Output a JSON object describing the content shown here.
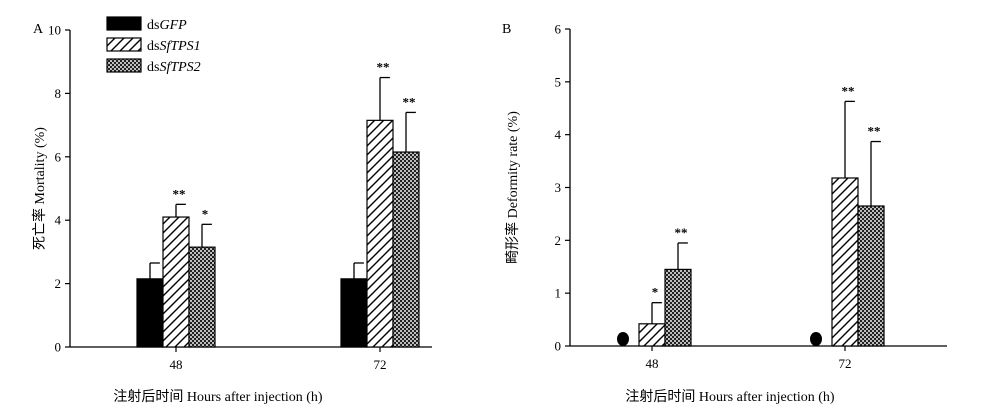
{
  "chart_data": [
    {
      "type": "bar",
      "panel": "A",
      "categories": [
        "48",
        "72"
      ],
      "xlabel": "注射后时间 Hours after injection (h)",
      "ylabel": "死亡率 Mortality (%)",
      "ylim": [
        0,
        10
      ],
      "yticks": [
        "0",
        "2",
        "4",
        "6",
        "8",
        "10"
      ],
      "legend_placement": "top-left",
      "series": [
        {
          "name_prefix": "ds",
          "name_italic": "GFP",
          "pattern": "solid",
          "color": "#000000",
          "values": [
            2.15,
            2.15
          ],
          "errors": [
            0.5,
            0.5
          ],
          "sig": [
            "",
            ""
          ]
        },
        {
          "name_prefix": "ds",
          "name_italic": "SfTPS1",
          "pattern": "diagonal",
          "color": "#000000",
          "values": [
            4.1,
            7.15
          ],
          "errors": [
            0.4,
            1.35
          ],
          "sig": [
            "**",
            "**"
          ]
        },
        {
          "name_prefix": "ds",
          "name_italic": "SfTPS2",
          "pattern": "crosshatch",
          "color": "#000000",
          "values": [
            3.15,
            6.15
          ],
          "errors": [
            0.72,
            1.25
          ],
          "sig": [
            "*",
            "**"
          ]
        }
      ]
    },
    {
      "type": "bar",
      "panel": "B",
      "categories": [
        "48",
        "72"
      ],
      "xlabel": "注射后时间 Hours after injection (h)",
      "ylabel": "畸形率 Deformity rate (%)",
      "ylim": [
        0,
        6
      ],
      "yticks": [
        "0",
        "1",
        "2",
        "3",
        "4",
        "5",
        "6"
      ],
      "series": [
        {
          "name_prefix": "ds",
          "name_italic": "GFP",
          "pattern": "solid",
          "color": "#000000",
          "values": [
            0,
            0
          ],
          "errors": [
            0,
            0
          ],
          "sig": [
            "",
            ""
          ]
        },
        {
          "name_prefix": "ds",
          "name_italic": "SfTPS1",
          "pattern": "diagonal",
          "color": "#000000",
          "values": [
            0.42,
            3.18
          ],
          "errors": [
            0.4,
            1.45
          ],
          "sig": [
            "*",
            "**"
          ]
        },
        {
          "name_prefix": "ds",
          "name_italic": "SfTPS2",
          "pattern": "crosshatch",
          "color": "#000000",
          "values": [
            1.45,
            2.65
          ],
          "errors": [
            0.5,
            1.22
          ],
          "sig": [
            "**",
            "**"
          ]
        }
      ]
    }
  ]
}
